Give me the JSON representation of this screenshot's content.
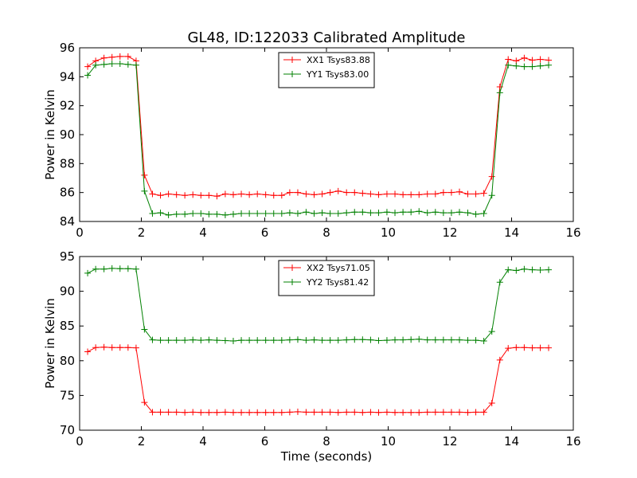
{
  "figure": {
    "title": "GL48, ID:122033 Calibrated Amplitude"
  },
  "chart_data": [
    {
      "type": "line",
      "title": "GL48, ID:122033 Calibrated Amplitude",
      "xlabel": "",
      "ylabel": "Power in Kelvin",
      "xlim": [
        0,
        16
      ],
      "ylim": [
        84,
        96
      ],
      "xticks": [
        0,
        2,
        4,
        6,
        8,
        10,
        12,
        14,
        16
      ],
      "yticks": [
        84,
        86,
        88,
        90,
        92,
        94,
        96
      ],
      "grid": false,
      "legend_position": "top-center",
      "x": [
        0.26,
        0.52,
        0.79,
        1.05,
        1.31,
        1.57,
        1.83,
        2.1,
        2.36,
        2.62,
        2.88,
        3.14,
        3.41,
        3.67,
        3.93,
        4.19,
        4.45,
        4.72,
        4.98,
        5.24,
        5.5,
        5.76,
        6.03,
        6.29,
        6.55,
        6.81,
        7.07,
        7.34,
        7.6,
        7.86,
        8.12,
        8.38,
        8.65,
        8.91,
        9.17,
        9.43,
        9.69,
        9.96,
        10.22,
        10.48,
        10.74,
        11.0,
        11.27,
        11.53,
        11.79,
        12.05,
        12.31,
        12.58,
        12.84,
        13.1,
        13.36,
        13.62,
        13.89,
        14.15,
        14.41,
        14.67,
        14.93,
        15.2
      ],
      "series": [
        {
          "name": "XX1 Tsys83.88",
          "color": "#ff0000",
          "values": [
            94.7,
            95.1,
            95.3,
            95.35,
            95.4,
            95.4,
            95.1,
            87.2,
            85.9,
            85.8,
            85.9,
            85.85,
            85.8,
            85.85,
            85.8,
            85.8,
            85.75,
            85.9,
            85.85,
            85.9,
            85.85,
            85.9,
            85.85,
            85.8,
            85.8,
            86.0,
            86.0,
            85.9,
            85.85,
            85.9,
            86.0,
            86.1,
            86.0,
            86.0,
            85.95,
            85.9,
            85.85,
            85.9,
            85.9,
            85.85,
            85.85,
            85.85,
            85.9,
            85.9,
            86.0,
            86.0,
            86.05,
            85.9,
            85.9,
            85.95,
            87.1,
            93.3,
            95.2,
            95.1,
            95.3,
            95.15,
            95.2,
            95.15
          ]
        },
        {
          "name": "YY1 Tsys83.00",
          "color": "#008000",
          "values": [
            94.1,
            94.8,
            94.85,
            94.9,
            94.9,
            94.85,
            94.8,
            86.1,
            84.55,
            84.6,
            84.45,
            84.5,
            84.5,
            84.55,
            84.55,
            84.5,
            84.5,
            84.45,
            84.5,
            84.55,
            84.55,
            84.55,
            84.55,
            84.55,
            84.55,
            84.6,
            84.55,
            84.65,
            84.55,
            84.6,
            84.55,
            84.55,
            84.6,
            84.65,
            84.65,
            84.6,
            84.6,
            84.65,
            84.6,
            84.65,
            84.65,
            84.7,
            84.6,
            84.65,
            84.6,
            84.6,
            84.65,
            84.6,
            84.5,
            84.55,
            85.8,
            92.9,
            94.8,
            94.75,
            94.7,
            94.7,
            94.75,
            94.8
          ]
        }
      ]
    },
    {
      "type": "line",
      "title": "",
      "xlabel": "Time (seconds)",
      "ylabel": "Power in Kelvin",
      "xlim": [
        0,
        16
      ],
      "ylim": [
        70,
        95
      ],
      "xticks": [
        0,
        2,
        4,
        6,
        8,
        10,
        12,
        14,
        16
      ],
      "yticks": [
        70,
        75,
        80,
        85,
        90,
        95
      ],
      "grid": false,
      "legend_position": "top-center",
      "x": [
        0.26,
        0.52,
        0.79,
        1.05,
        1.31,
        1.57,
        1.83,
        2.1,
        2.36,
        2.62,
        2.88,
        3.14,
        3.41,
        3.67,
        3.93,
        4.19,
        4.45,
        4.72,
        4.98,
        5.24,
        5.5,
        5.76,
        6.03,
        6.29,
        6.55,
        6.81,
        7.07,
        7.34,
        7.6,
        7.86,
        8.12,
        8.38,
        8.65,
        8.91,
        9.17,
        9.43,
        9.69,
        9.96,
        10.22,
        10.48,
        10.74,
        11.0,
        11.27,
        11.53,
        11.79,
        12.05,
        12.31,
        12.58,
        12.84,
        13.1,
        13.36,
        13.62,
        13.89,
        14.15,
        14.41,
        14.67,
        14.93,
        15.2
      ],
      "series": [
        {
          "name": "XX2 Tsys71.05",
          "color": "#ff0000",
          "values": [
            81.3,
            81.9,
            81.95,
            81.9,
            81.9,
            81.9,
            81.85,
            74.0,
            72.6,
            72.6,
            72.6,
            72.6,
            72.55,
            72.6,
            72.55,
            72.55,
            72.55,
            72.6,
            72.55,
            72.55,
            72.55,
            72.55,
            72.55,
            72.55,
            72.55,
            72.6,
            72.65,
            72.6,
            72.6,
            72.6,
            72.6,
            72.55,
            72.6,
            72.6,
            72.55,
            72.6,
            72.55,
            72.6,
            72.55,
            72.55,
            72.55,
            72.55,
            72.6,
            72.6,
            72.6,
            72.6,
            72.6,
            72.55,
            72.6,
            72.6,
            73.9,
            80.1,
            81.8,
            81.9,
            81.9,
            81.85,
            81.85,
            81.85
          ]
        },
        {
          "name": "YY2 Tsys81.42",
          "color": "#008000",
          "values": [
            92.6,
            93.2,
            93.2,
            93.3,
            93.25,
            93.25,
            93.2,
            84.5,
            83.0,
            82.95,
            82.95,
            82.95,
            82.95,
            83.0,
            82.95,
            83.0,
            82.95,
            82.9,
            82.85,
            82.95,
            82.95,
            82.95,
            82.95,
            82.95,
            82.95,
            83.0,
            83.05,
            82.95,
            83.0,
            82.95,
            82.95,
            82.95,
            83.0,
            83.05,
            83.05,
            83.0,
            82.9,
            82.95,
            83.0,
            83.0,
            83.05,
            83.1,
            83.0,
            83.0,
            83.0,
            83.0,
            83.0,
            82.95,
            82.95,
            82.85,
            84.2,
            91.3,
            93.1,
            93.0,
            93.2,
            93.1,
            93.05,
            93.1
          ]
        }
      ]
    }
  ]
}
